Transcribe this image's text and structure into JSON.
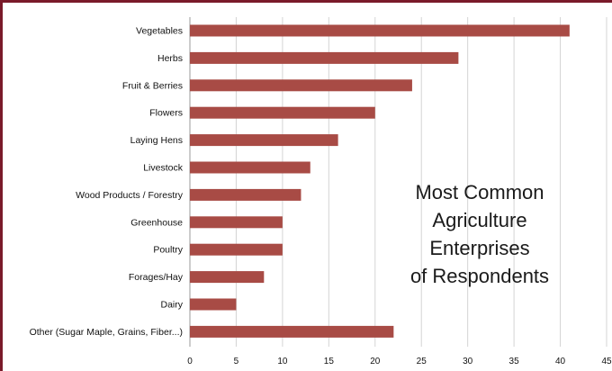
{
  "chart_data": {
    "type": "bar",
    "orientation": "horizontal",
    "title_lines": [
      "Most Common",
      "Agriculture",
      "Enterprises",
      "of Respondents"
    ],
    "categories": [
      "Vegetables",
      "Herbs",
      "Fruit & Berries",
      "Flowers",
      "Laying Hens",
      "Livestock",
      "Wood Products / Forestry",
      "Greenhouse",
      "Poultry",
      "Forages/Hay",
      "Dairy",
      "Other (Sugar Maple, Grains, Fiber...)"
    ],
    "values": [
      41,
      29,
      24,
      20,
      16,
      13,
      12,
      10,
      10,
      8,
      5,
      22
    ],
    "xlim": [
      0,
      45
    ],
    "xticks": [
      0,
      5,
      10,
      15,
      20,
      25,
      30,
      35,
      40,
      45
    ],
    "grid": true,
    "xlabel": "",
    "ylabel": "",
    "colors": {
      "bar": "#a84b45",
      "frame": "#7a1a2a"
    }
  }
}
